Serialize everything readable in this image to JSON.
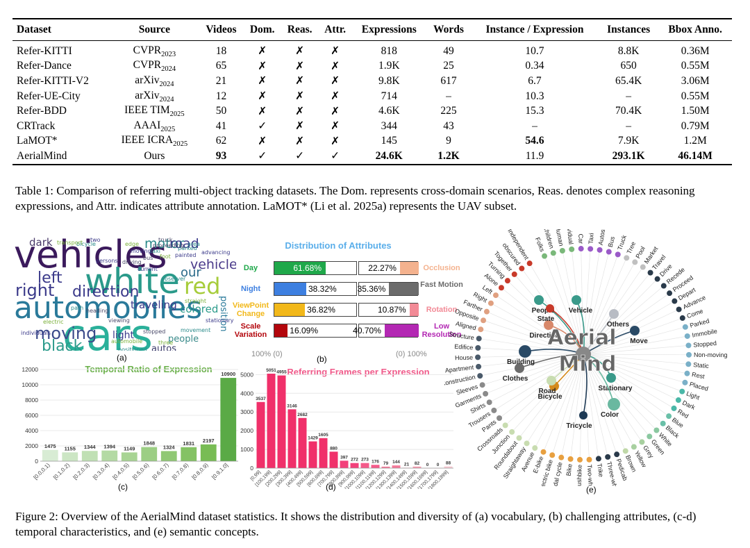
{
  "table": {
    "headers": [
      "Dataset",
      "Source",
      "Videos",
      "Dom.",
      "Reas.",
      "Attr.",
      "Expressions",
      "Words",
      "Instance / Expression",
      "Instances",
      "Bbox Anno."
    ],
    "rows": [
      {
        "dataset": "Refer-KITTI",
        "src": "CVPR",
        "sub": "2023",
        "videos": "18",
        "dom": "✗",
        "reas": "✗",
        "attr": "✗",
        "expr": "818",
        "words": "49",
        "ipe": "10.7",
        "inst": "8.8K",
        "bbox": "0.36M"
      },
      {
        "dataset": "Refer-Dance",
        "src": "CVPR",
        "sub": "2024",
        "videos": "65",
        "dom": "✗",
        "reas": "✗",
        "attr": "✗",
        "expr": "1.9K",
        "words": "25",
        "ipe": "0.34",
        "inst": "650",
        "bbox": "0.55M"
      },
      {
        "dataset": "Refer-KITTI-V2",
        "src": "arXiv",
        "sub": "2024",
        "videos": "21",
        "dom": "✗",
        "reas": "✗",
        "attr": "✗",
        "expr": "9.8K",
        "words": "617",
        "ipe": "6.7",
        "inst": "65.4K",
        "bbox": "3.06M"
      },
      {
        "dataset": "Refer-UE-City",
        "src": "arXiv",
        "sub": "2024",
        "videos": "12",
        "dom": "✗",
        "reas": "✗",
        "attr": "✗",
        "expr": "714",
        "words": "–",
        "ipe": "10.3",
        "inst": "–",
        "bbox": "0.55M"
      },
      {
        "dataset": "Refer-BDD",
        "src": "IEEE TIM",
        "sub": "2025",
        "videos": "50",
        "dom": "✗",
        "reas": "✗",
        "attr": "✗",
        "expr": "4.6K",
        "words": "225",
        "ipe": "15.3",
        "inst": "70.4K",
        "bbox": "1.50M"
      },
      {
        "dataset": "CRTrack",
        "src": "AAAI",
        "sub": "2025",
        "videos": "41",
        "dom": "✓",
        "reas": "✗",
        "attr": "✗",
        "expr": "344",
        "words": "43",
        "ipe": "–",
        "inst": "–",
        "bbox": "0.79M"
      },
      {
        "dataset": "LaMOT*",
        "src": "IEEE ICRA",
        "sub": "2025",
        "videos": "62",
        "dom": "✗",
        "reas": "✗",
        "attr": "✗",
        "expr": "145",
        "words": "9",
        "ipe": "54.6",
        "inst": "7.9K",
        "bbox": "1.2M"
      },
      {
        "dataset": "AerialMind",
        "src": "Ours",
        "sub": "",
        "videos": "93",
        "dom": "✓",
        "reas": "✓",
        "attr": "✓",
        "expr": "24.6K",
        "words": "1.2K",
        "ipe": "11.9",
        "inst": "293.1K",
        "bbox": "46.14M"
      }
    ]
  },
  "table_caption": "Table 1: Comparison of referring multi-object tracking datasets. The Dom. represents cross-domain scenarios, Reas. denotes complex reasoning expressions, and Attr. indicates attribute annotation. LaMOT* (Li et al. 2025a) represents the UAV subset.",
  "figure_caption": "Figure 2: Overview of the AerialMind dataset statistics. It shows the distribution and diversity of (a) vocabulary, (b) challenging attributes, (c-d) temporal characteristics, and (e) semantic concepts.",
  "panel_labels": {
    "a": "(a)",
    "b": "(b)",
    "c": "(c)",
    "d": "(d)",
    "e": "(e)"
  },
  "wordcloud": {
    "big": [
      "vehicles",
      "white",
      "automobiles",
      "cars",
      "red",
      "left",
      "right",
      "direction",
      "moving",
      "black",
      "motor",
      "road",
      "vehicle",
      "our",
      "colored",
      "traveling",
      "dark",
      "people",
      "light",
      "position",
      "autos"
    ],
    "small": [
      "persons",
      "bicycle",
      "driving",
      "electric",
      "individuals",
      "positioned",
      "stopped",
      "three",
      "moving",
      "taxi",
      "bus",
      "foot",
      "painted",
      "parked",
      "proceeding",
      "straight",
      "advancing",
      "area",
      "truck",
      "edge",
      "current",
      "movement",
      "viewing",
      "transport",
      "two",
      "observer",
      "heading",
      "automobile",
      "stationary",
      "path"
    ]
  },
  "attributes": {
    "title": "Distribution of Attributes",
    "left": [
      {
        "name": "Day",
        "value": 61.68,
        "label": "61.68%",
        "color": "#1fa84a"
      },
      {
        "name": "Night",
        "value": 38.32,
        "label": "38.32%",
        "color": "#3d7fe0"
      },
      {
        "name": "ViewPoint Change",
        "value": 36.82,
        "label": "36.82%",
        "color": "#f2b81a"
      },
      {
        "name": "Scale Variation",
        "value": 16.09,
        "label": "16.09%",
        "color": "#b3060c"
      }
    ],
    "right": [
      {
        "name": "Occlusion",
        "value": 22.27,
        "label": "22.27%",
        "color": "#f4b28e"
      },
      {
        "name": "Fast Motion",
        "value": 35.36,
        "label": "35.36%",
        "color": "#6b6b6b"
      },
      {
        "name": "Rotation",
        "value": 10.87,
        "label": "10.87%",
        "color": "#f28a96"
      },
      {
        "name": "Low Resolution",
        "value": 40.7,
        "label": "40.70%",
        "color": "#b328b3"
      }
    ],
    "axis_left": "100% (0)",
    "axis_right": "(0) 100%"
  },
  "chart_data": [
    {
      "type": "bar",
      "title": "Temporal Ratio of Expression",
      "categories": [
        "[0.0,0.1)",
        "[0.1,0.2)",
        "[0.2,0.3)",
        "[0.3,0.4)",
        "[0.4,0.5)",
        "[0.5,0.6)",
        "[0.6,0.7)",
        "[0.7,0.8)",
        "[0.8,0.9)",
        "[0.9,1.0]"
      ],
      "values": [
        1475,
        1155,
        1344,
        1394,
        1149,
        1848,
        1324,
        1831,
        2197,
        10900
      ],
      "yticks": [
        0,
        2000,
        4000,
        6000,
        8000,
        10000,
        12000
      ],
      "ylim": [
        0,
        12000
      ]
    },
    {
      "type": "bar",
      "title": "Referring Frames per Expression",
      "categories": [
        "[0,99]",
        "[100,199]",
        "[200,299]",
        "[300,399]",
        "[400,499]",
        "[500,599]",
        "[600,699]",
        "[700,799]",
        "[800,899]",
        "[900,999]",
        "[1000,1099]",
        "[1100,1199]",
        "[1200,1299]",
        "[1300,1399]",
        "[1400,1499]",
        "[1500,1599]",
        "[1600,1699]",
        "[1700,1799]",
        "[1800,1899]"
      ],
      "values": [
        3537,
        5051,
        4955,
        3146,
        2682,
        1429,
        1605,
        880,
        397,
        272,
        273,
        176,
        79,
        144,
        21,
        82,
        0,
        0,
        88
      ],
      "yticks": [
        0,
        1000,
        2000,
        3000,
        4000,
        5000
      ],
      "ylim": [
        0,
        5200
      ]
    }
  ],
  "concepts": {
    "center1": "Aerial",
    "center2": "Mind",
    "categories": [
      {
        "name": "People",
        "color": "#3a9a8a"
      },
      {
        "name": "Vehicle",
        "color": "#3a9a8a"
      },
      {
        "name": "Others",
        "color": "#b8bcc4"
      },
      {
        "name": "Move",
        "color": "#2a4a66"
      },
      {
        "name": "Stationary",
        "color": "#3a9a8a"
      },
      {
        "name": "Color",
        "color": "#6ab8a0"
      },
      {
        "name": "Tricycle",
        "color": "#1e3a55"
      },
      {
        "name": "Bicycle",
        "color": "#d48a1a"
      },
      {
        "name": "Road",
        "color": "#c8dcb0"
      },
      {
        "name": "Clothes",
        "color": "#6a6a6a"
      },
      {
        "name": "Building",
        "color": "#2a4a66"
      },
      {
        "name": "Direction",
        "color": "#d8886a"
      },
      {
        "name": "State",
        "color": "#c83a2a"
      }
    ],
    "leaves": [
      {
        "t": "Folks",
        "c": "#7ab87a"
      },
      {
        "t": "Children",
        "c": "#7ab87a"
      },
      {
        "t": "Human",
        "c": "#7ab87a"
      },
      {
        "t": "Individual",
        "c": "#7ab87a"
      },
      {
        "t": "Car",
        "c": "#9a5ac8"
      },
      {
        "t": "Taxi",
        "c": "#9a5ac8"
      },
      {
        "t": "Autos",
        "c": "#9a5ac8"
      },
      {
        "t": "Bus",
        "c": "#9a5ac8"
      },
      {
        "t": "Truck",
        "c": "#9a5ac8"
      },
      {
        "t": "Tree",
        "c": "#c0c0c0"
      },
      {
        "t": "Pool",
        "c": "#c0c0c0"
      },
      {
        "t": "Market",
        "c": "#c0c0c0"
      },
      {
        "t": "Travel",
        "c": "#2a3a4a"
      },
      {
        "t": "Drive",
        "c": "#2a3a4a"
      },
      {
        "t": "Recede",
        "c": "#2a3a4a"
      },
      {
        "t": "Proceed",
        "c": "#2a3a4a"
      },
      {
        "t": "Depart",
        "c": "#2a3a4a"
      },
      {
        "t": "Advance",
        "c": "#2a3a4a"
      },
      {
        "t": "Come",
        "c": "#2a3a4a"
      },
      {
        "t": "Parked",
        "c": "#7ab0c8"
      },
      {
        "t": "Immobile",
        "c": "#7ab0c8"
      },
      {
        "t": "Stopped",
        "c": "#7ab0c8"
      },
      {
        "t": "Non-moving",
        "c": "#7ab0c8"
      },
      {
        "t": "Static",
        "c": "#7ab0c8"
      },
      {
        "t": "Rest",
        "c": "#7ab0c8"
      },
      {
        "t": "Placed",
        "c": "#7ab0c8"
      },
      {
        "t": "Light",
        "c": "#4ab8a8"
      },
      {
        "t": "Dark",
        "c": "#4ab8a8"
      },
      {
        "t": "Red",
        "c": "#4ab8a8"
      },
      {
        "t": "Blue",
        "c": "#6ac0a8"
      },
      {
        "t": "Black",
        "c": "#6ac0a8"
      },
      {
        "t": "White",
        "c": "#8ac8a0"
      },
      {
        "t": "Green",
        "c": "#8ac8a0"
      },
      {
        "t": "Grey",
        "c": "#a8d0a0"
      },
      {
        "t": "Yellow",
        "c": "#a8d0a0"
      },
      {
        "t": "Brown",
        "c": "#c0d8a8"
      },
      {
        "t": "Pedicab",
        "c": "#2a3a4a"
      },
      {
        "t": "Three-wheeler",
        "c": "#2a3a4a"
      },
      {
        "t": "Trike",
        "c": "#2a3a4a"
      },
      {
        "t": "Two-wheeler",
        "c": "#e8a040"
      },
      {
        "t": "Pushbike",
        "c": "#e8a040"
      },
      {
        "t": "Bike",
        "c": "#e8a040"
      },
      {
        "t": "Pedal cycle",
        "c": "#e8a040"
      },
      {
        "t": "Electric bike",
        "c": "#e8a040"
      },
      {
        "t": "E-bike",
        "c": "#e8a040"
      },
      {
        "t": "Avenue",
        "c": "#c8dcb0"
      },
      {
        "t": "Straightaway",
        "c": "#c8dcb0"
      },
      {
        "t": "Roundabout",
        "c": "#c8dcb0"
      },
      {
        "t": "Junction",
        "c": "#c8dcb0"
      },
      {
        "t": "Crossroads",
        "c": "#c8dcb0"
      },
      {
        "t": "Pants",
        "c": "#8a8a8a"
      },
      {
        "t": "Trousers",
        "c": "#8a8a8a"
      },
      {
        "t": "Shirts",
        "c": "#8a8a8a"
      },
      {
        "t": "Garments",
        "c": "#8a8a8a"
      },
      {
        "t": "Sleeves",
        "c": "#8a8a8a"
      },
      {
        "t": "Construction",
        "c": "#4a5a6a"
      },
      {
        "t": "Apartment",
        "c": "#4a5a6a"
      },
      {
        "t": "House",
        "c": "#4a5a6a"
      },
      {
        "t": "Edifice",
        "c": "#4a5a6a"
      },
      {
        "t": "Structure",
        "c": "#4a5a6a"
      },
      {
        "t": "Aligned",
        "c": "#e0a080"
      },
      {
        "t": "Opposite",
        "c": "#e0a080"
      },
      {
        "t": "Farther",
        "c": "#e0a080"
      },
      {
        "t": "Right",
        "c": "#e0a080"
      },
      {
        "t": "Left",
        "c": "#e0a080"
      },
      {
        "t": "Alone",
        "c": "#c83a2a"
      },
      {
        "t": "Turning",
        "c": "#c83a2a"
      },
      {
        "t": "Together",
        "c": "#c83a2a"
      },
      {
        "t": "obscured",
        "c": "#c83a2a"
      },
      {
        "t": "Independent",
        "c": "#c83a2a"
      }
    ]
  }
}
